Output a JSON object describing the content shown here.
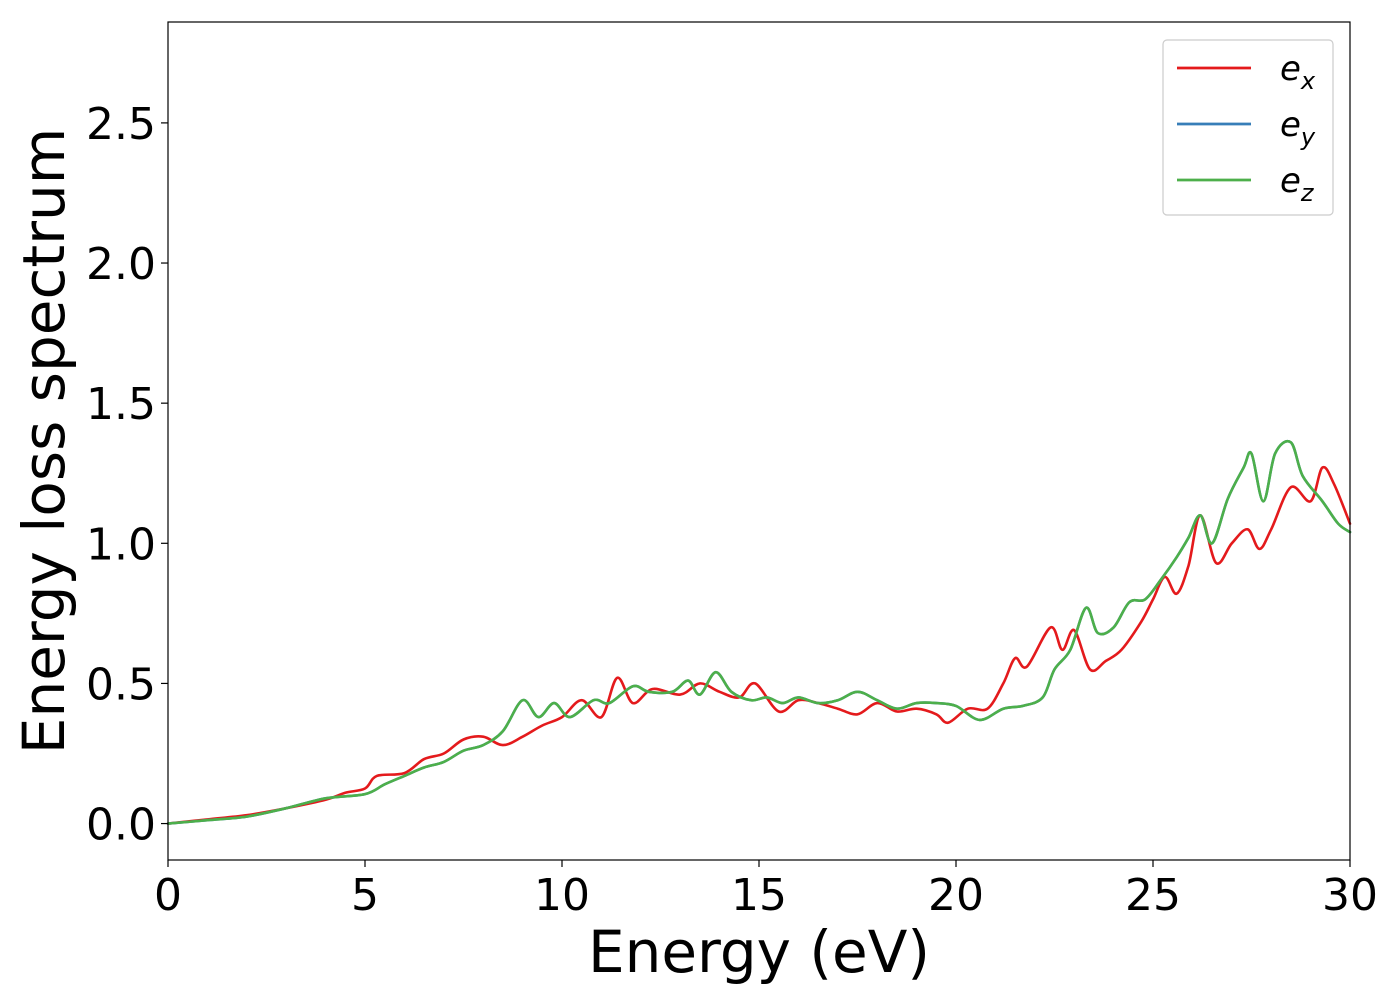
{
  "chart_data": {
    "type": "line",
    "title": "",
    "xlabel": "Energy (eV)",
    "ylabel": "Energy loss spectrum",
    "xlim": [
      0,
      30
    ],
    "ylim": [
      -0.13,
      2.86
    ],
    "xticks": [
      0,
      5,
      10,
      15,
      20,
      25,
      30
    ],
    "yticks": [
      0.0,
      0.5,
      1.0,
      1.5,
      2.0,
      2.5
    ],
    "ytick_labels": [
      "0.0",
      "0.5",
      "1.0",
      "1.5",
      "2.0",
      "2.5"
    ],
    "grid": false,
    "legend_position": "top-right",
    "series": [
      {
        "name": "e",
        "subscript": "x",
        "color": "#e41a1c",
        "points": [
          [
            0,
            0
          ],
          [
            1,
            0.015
          ],
          [
            2,
            0.03
          ],
          [
            3,
            0.055
          ],
          [
            4,
            0.085
          ],
          [
            4.5,
            0.11
          ],
          [
            5,
            0.125
          ],
          [
            5.3,
            0.17
          ],
          [
            6,
            0.18
          ],
          [
            6.5,
            0.23
          ],
          [
            7,
            0.25
          ],
          [
            7.5,
            0.3
          ],
          [
            8,
            0.31
          ],
          [
            8.5,
            0.28
          ],
          [
            9,
            0.31
          ],
          [
            9.5,
            0.35
          ],
          [
            10,
            0.38
          ],
          [
            10.5,
            0.44
          ],
          [
            11,
            0.38
          ],
          [
            11.4,
            0.52
          ],
          [
            11.8,
            0.43
          ],
          [
            12.3,
            0.48
          ],
          [
            13,
            0.46
          ],
          [
            13.5,
            0.5
          ],
          [
            14,
            0.47
          ],
          [
            14.5,
            0.45
          ],
          [
            14.9,
            0.5
          ],
          [
            15.5,
            0.4
          ],
          [
            16,
            0.44
          ],
          [
            16.5,
            0.43
          ],
          [
            17,
            0.41
          ],
          [
            17.5,
            0.39
          ],
          [
            18,
            0.43
          ],
          [
            18.5,
            0.4
          ],
          [
            19,
            0.41
          ],
          [
            19.5,
            0.39
          ],
          [
            19.8,
            0.36
          ],
          [
            20.3,
            0.41
          ],
          [
            20.8,
            0.41
          ],
          [
            21.2,
            0.5
          ],
          [
            21.5,
            0.59
          ],
          [
            21.8,
            0.56
          ],
          [
            22.4,
            0.7
          ],
          [
            22.7,
            0.62
          ],
          [
            23,
            0.69
          ],
          [
            23.4,
            0.55
          ],
          [
            23.8,
            0.58
          ],
          [
            24.2,
            0.62
          ],
          [
            24.7,
            0.72
          ],
          [
            25,
            0.8
          ],
          [
            25.3,
            0.88
          ],
          [
            25.6,
            0.82
          ],
          [
            25.9,
            0.92
          ],
          [
            26.2,
            1.1
          ],
          [
            26.6,
            0.93
          ],
          [
            27,
            1.0
          ],
          [
            27.4,
            1.05
          ],
          [
            27.7,
            0.98
          ],
          [
            28,
            1.05
          ],
          [
            28.5,
            1.2
          ],
          [
            29,
            1.15
          ],
          [
            29.3,
            1.27
          ],
          [
            29.6,
            1.21
          ],
          [
            30,
            1.07
          ]
        ]
      },
      {
        "name": "e",
        "subscript": "y",
        "color": "#377eb8",
        "points": [
          [
            0,
            0
          ],
          [
            1,
            0.012
          ],
          [
            2,
            0.025
          ],
          [
            3,
            0.055
          ],
          [
            4,
            0.09
          ],
          [
            5,
            0.105
          ],
          [
            5.5,
            0.14
          ],
          [
            6,
            0.17
          ],
          [
            6.5,
            0.2
          ],
          [
            7,
            0.22
          ],
          [
            7.5,
            0.26
          ],
          [
            8,
            0.28
          ],
          [
            8.5,
            0.33
          ],
          [
            9,
            0.44
          ],
          [
            9.4,
            0.38
          ],
          [
            9.8,
            0.43
          ],
          [
            10.2,
            0.38
          ],
          [
            10.8,
            0.44
          ],
          [
            11.2,
            0.43
          ],
          [
            11.8,
            0.49
          ],
          [
            12.2,
            0.47
          ],
          [
            12.8,
            0.47
          ],
          [
            13.2,
            0.51
          ],
          [
            13.5,
            0.46
          ],
          [
            13.9,
            0.54
          ],
          [
            14.3,
            0.47
          ],
          [
            14.8,
            0.44
          ],
          [
            15.2,
            0.45
          ],
          [
            15.6,
            0.43
          ],
          [
            16,
            0.45
          ],
          [
            16.5,
            0.43
          ],
          [
            17,
            0.44
          ],
          [
            17.5,
            0.47
          ],
          [
            18,
            0.44
          ],
          [
            18.5,
            0.41
          ],
          [
            19,
            0.43
          ],
          [
            19.5,
            0.43
          ],
          [
            20,
            0.42
          ],
          [
            20.6,
            0.37
          ],
          [
            21.2,
            0.41
          ],
          [
            21.7,
            0.42
          ],
          [
            22.2,
            0.45
          ],
          [
            22.5,
            0.55
          ],
          [
            22.9,
            0.62
          ],
          [
            23.3,
            0.77
          ],
          [
            23.6,
            0.68
          ],
          [
            24,
            0.7
          ],
          [
            24.4,
            0.79
          ],
          [
            24.8,
            0.8
          ],
          [
            25.2,
            0.87
          ],
          [
            25.6,
            0.95
          ],
          [
            25.9,
            1.02
          ],
          [
            26.2,
            1.1
          ],
          [
            26.5,
            1.0
          ],
          [
            26.9,
            1.16
          ],
          [
            27.3,
            1.27
          ],
          [
            27.5,
            1.32
          ],
          [
            27.8,
            1.15
          ],
          [
            28.1,
            1.32
          ],
          [
            28.5,
            1.36
          ],
          [
            28.8,
            1.24
          ],
          [
            29.3,
            1.15
          ],
          [
            29.7,
            1.07
          ],
          [
            30,
            1.04
          ]
        ]
      },
      {
        "name": "e",
        "subscript": "z",
        "color": "#4daf4a",
        "points": [
          [
            0,
            0
          ],
          [
            1,
            0.012
          ],
          [
            2,
            0.025
          ],
          [
            3,
            0.055
          ],
          [
            4,
            0.09
          ],
          [
            5,
            0.105
          ],
          [
            5.5,
            0.14
          ],
          [
            6,
            0.17
          ],
          [
            6.5,
            0.2
          ],
          [
            7,
            0.22
          ],
          [
            7.5,
            0.26
          ],
          [
            8,
            0.28
          ],
          [
            8.5,
            0.33
          ],
          [
            9,
            0.44
          ],
          [
            9.4,
            0.38
          ],
          [
            9.8,
            0.43
          ],
          [
            10.2,
            0.38
          ],
          [
            10.8,
            0.44
          ],
          [
            11.2,
            0.43
          ],
          [
            11.8,
            0.49
          ],
          [
            12.2,
            0.47
          ],
          [
            12.8,
            0.47
          ],
          [
            13.2,
            0.51
          ],
          [
            13.5,
            0.46
          ],
          [
            13.9,
            0.54
          ],
          [
            14.3,
            0.47
          ],
          [
            14.8,
            0.44
          ],
          [
            15.2,
            0.45
          ],
          [
            15.6,
            0.43
          ],
          [
            16,
            0.45
          ],
          [
            16.5,
            0.43
          ],
          [
            17,
            0.44
          ],
          [
            17.5,
            0.47
          ],
          [
            18,
            0.44
          ],
          [
            18.5,
            0.41
          ],
          [
            19,
            0.43
          ],
          [
            19.5,
            0.43
          ],
          [
            20,
            0.42
          ],
          [
            20.6,
            0.37
          ],
          [
            21.2,
            0.41
          ],
          [
            21.7,
            0.42
          ],
          [
            22.2,
            0.45
          ],
          [
            22.5,
            0.55
          ],
          [
            22.9,
            0.62
          ],
          [
            23.3,
            0.77
          ],
          [
            23.6,
            0.68
          ],
          [
            24,
            0.7
          ],
          [
            24.4,
            0.79
          ],
          [
            24.8,
            0.8
          ],
          [
            25.2,
            0.87
          ],
          [
            25.6,
            0.95
          ],
          [
            25.9,
            1.02
          ],
          [
            26.2,
            1.1
          ],
          [
            26.5,
            1.0
          ],
          [
            26.9,
            1.16
          ],
          [
            27.3,
            1.27
          ],
          [
            27.5,
            1.32
          ],
          [
            27.8,
            1.15
          ],
          [
            28.1,
            1.32
          ],
          [
            28.5,
            1.36
          ],
          [
            28.8,
            1.24
          ],
          [
            29.3,
            1.15
          ],
          [
            29.7,
            1.07
          ],
          [
            30,
            1.04
          ]
        ]
      }
    ]
  }
}
